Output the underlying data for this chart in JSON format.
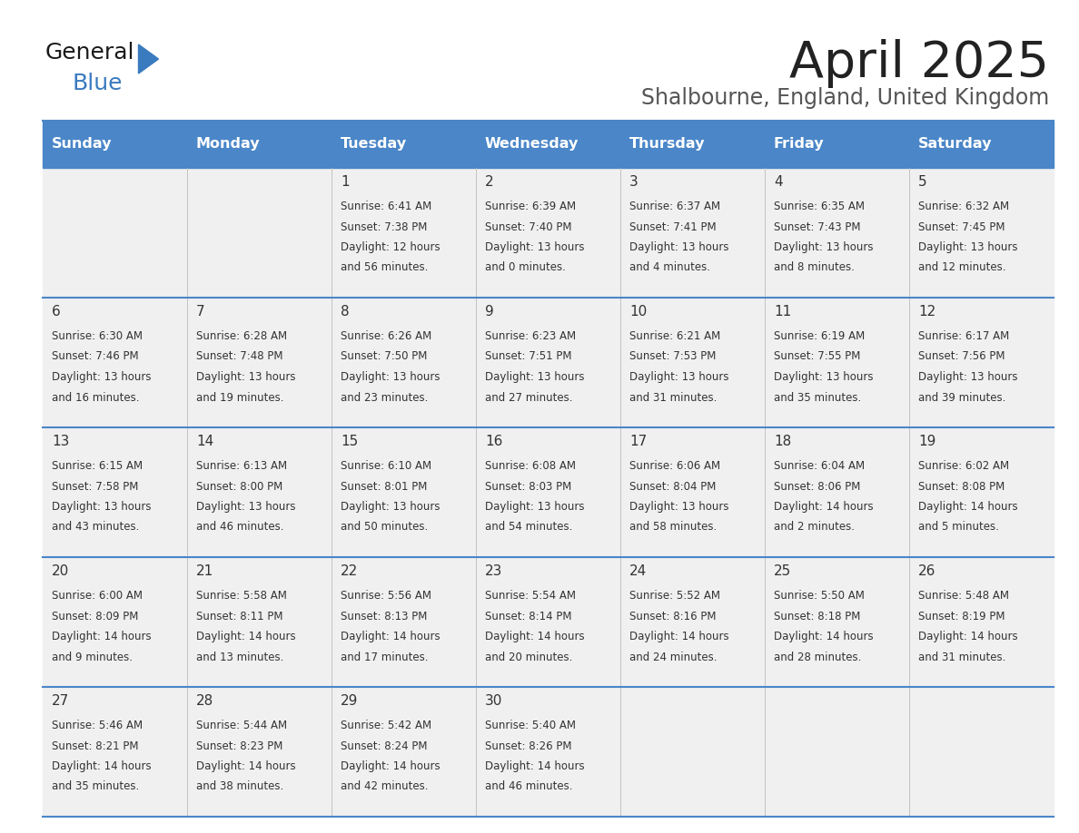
{
  "title": "April 2025",
  "subtitle": "Shalbourne, England, United Kingdom",
  "days_of_week": [
    "Sunday",
    "Monday",
    "Tuesday",
    "Wednesday",
    "Thursday",
    "Friday",
    "Saturday"
  ],
  "header_bg": "#4a86c8",
  "header_text_color": "#ffffff",
  "cell_bg": "#f0f0f0",
  "divider_color": "#4a86c8",
  "text_color": "#333333",
  "title_color": "#222222",
  "subtitle_color": "#555555",
  "calendar": [
    [
      {
        "day": null,
        "sunrise": null,
        "sunset": null,
        "daylight": null
      },
      {
        "day": null,
        "sunrise": null,
        "sunset": null,
        "daylight": null
      },
      {
        "day": 1,
        "sunrise": "6:41 AM",
        "sunset": "7:38 PM",
        "daylight": "12 hours\nand 56 minutes."
      },
      {
        "day": 2,
        "sunrise": "6:39 AM",
        "sunset": "7:40 PM",
        "daylight": "13 hours\nand 0 minutes."
      },
      {
        "day": 3,
        "sunrise": "6:37 AM",
        "sunset": "7:41 PM",
        "daylight": "13 hours\nand 4 minutes."
      },
      {
        "day": 4,
        "sunrise": "6:35 AM",
        "sunset": "7:43 PM",
        "daylight": "13 hours\nand 8 minutes."
      },
      {
        "day": 5,
        "sunrise": "6:32 AM",
        "sunset": "7:45 PM",
        "daylight": "13 hours\nand 12 minutes."
      }
    ],
    [
      {
        "day": 6,
        "sunrise": "6:30 AM",
        "sunset": "7:46 PM",
        "daylight": "13 hours\nand 16 minutes."
      },
      {
        "day": 7,
        "sunrise": "6:28 AM",
        "sunset": "7:48 PM",
        "daylight": "13 hours\nand 19 minutes."
      },
      {
        "day": 8,
        "sunrise": "6:26 AM",
        "sunset": "7:50 PM",
        "daylight": "13 hours\nand 23 minutes."
      },
      {
        "day": 9,
        "sunrise": "6:23 AM",
        "sunset": "7:51 PM",
        "daylight": "13 hours\nand 27 minutes."
      },
      {
        "day": 10,
        "sunrise": "6:21 AM",
        "sunset": "7:53 PM",
        "daylight": "13 hours\nand 31 minutes."
      },
      {
        "day": 11,
        "sunrise": "6:19 AM",
        "sunset": "7:55 PM",
        "daylight": "13 hours\nand 35 minutes."
      },
      {
        "day": 12,
        "sunrise": "6:17 AM",
        "sunset": "7:56 PM",
        "daylight": "13 hours\nand 39 minutes."
      }
    ],
    [
      {
        "day": 13,
        "sunrise": "6:15 AM",
        "sunset": "7:58 PM",
        "daylight": "13 hours\nand 43 minutes."
      },
      {
        "day": 14,
        "sunrise": "6:13 AM",
        "sunset": "8:00 PM",
        "daylight": "13 hours\nand 46 minutes."
      },
      {
        "day": 15,
        "sunrise": "6:10 AM",
        "sunset": "8:01 PM",
        "daylight": "13 hours\nand 50 minutes."
      },
      {
        "day": 16,
        "sunrise": "6:08 AM",
        "sunset": "8:03 PM",
        "daylight": "13 hours\nand 54 minutes."
      },
      {
        "day": 17,
        "sunrise": "6:06 AM",
        "sunset": "8:04 PM",
        "daylight": "13 hours\nand 58 minutes."
      },
      {
        "day": 18,
        "sunrise": "6:04 AM",
        "sunset": "8:06 PM",
        "daylight": "14 hours\nand 2 minutes."
      },
      {
        "day": 19,
        "sunrise": "6:02 AM",
        "sunset": "8:08 PM",
        "daylight": "14 hours\nand 5 minutes."
      }
    ],
    [
      {
        "day": 20,
        "sunrise": "6:00 AM",
        "sunset": "8:09 PM",
        "daylight": "14 hours\nand 9 minutes."
      },
      {
        "day": 21,
        "sunrise": "5:58 AM",
        "sunset": "8:11 PM",
        "daylight": "14 hours\nand 13 minutes."
      },
      {
        "day": 22,
        "sunrise": "5:56 AM",
        "sunset": "8:13 PM",
        "daylight": "14 hours\nand 17 minutes."
      },
      {
        "day": 23,
        "sunrise": "5:54 AM",
        "sunset": "8:14 PM",
        "daylight": "14 hours\nand 20 minutes."
      },
      {
        "day": 24,
        "sunrise": "5:52 AM",
        "sunset": "8:16 PM",
        "daylight": "14 hours\nand 24 minutes."
      },
      {
        "day": 25,
        "sunrise": "5:50 AM",
        "sunset": "8:18 PM",
        "daylight": "14 hours\nand 28 minutes."
      },
      {
        "day": 26,
        "sunrise": "5:48 AM",
        "sunset": "8:19 PM",
        "daylight": "14 hours\nand 31 minutes."
      }
    ],
    [
      {
        "day": 27,
        "sunrise": "5:46 AM",
        "sunset": "8:21 PM",
        "daylight": "14 hours\nand 35 minutes."
      },
      {
        "day": 28,
        "sunrise": "5:44 AM",
        "sunset": "8:23 PM",
        "daylight": "14 hours\nand 38 minutes."
      },
      {
        "day": 29,
        "sunrise": "5:42 AM",
        "sunset": "8:24 PM",
        "daylight": "14 hours\nand 42 minutes."
      },
      {
        "day": 30,
        "sunrise": "5:40 AM",
        "sunset": "8:26 PM",
        "daylight": "14 hours\nand 46 minutes."
      },
      {
        "day": null,
        "sunrise": null,
        "sunset": null,
        "daylight": null
      },
      {
        "day": null,
        "sunrise": null,
        "sunset": null,
        "daylight": null
      },
      {
        "day": null,
        "sunrise": null,
        "sunset": null,
        "daylight": null
      }
    ]
  ]
}
